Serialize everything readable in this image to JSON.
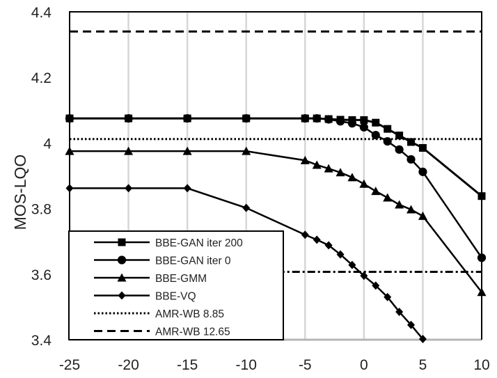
{
  "chart_data": {
    "type": "line",
    "title": "",
    "xlabel": "",
    "ylabel": "MOS-LQO",
    "xlim": [
      -25,
      10
    ],
    "ylim": [
      3.4,
      4.4
    ],
    "x_ticks": [
      "-25",
      "-20",
      "-15",
      "-10",
      "-5",
      "0",
      "5",
      "10"
    ],
    "y_ticks": [
      "3.4",
      "3.6",
      "3.8",
      "4",
      "4.2",
      "4.4"
    ],
    "x_tick_values": [
      -25,
      -20,
      -15,
      -10,
      -5,
      0,
      5,
      10
    ],
    "y_tick_values": [
      3.4,
      3.6,
      3.8,
      4.0,
      4.2,
      4.4
    ],
    "grid": "vertical",
    "legend_position": "bottom-left",
    "series": [
      {
        "name": "BBE-GAN iter 200",
        "marker": "square",
        "x": [
          -25,
          -20,
          -15,
          -10,
          -5,
          -4,
          -3,
          -2,
          -1,
          0,
          1,
          2,
          3,
          4,
          5,
          10
        ],
        "y": [
          4.075,
          4.075,
          4.075,
          4.075,
          4.075,
          4.075,
          4.073,
          4.071,
          4.07,
          4.07,
          4.062,
          4.043,
          4.023,
          4.003,
          3.985,
          3.838
        ]
      },
      {
        "name": "BBE-GAN iter 0",
        "marker": "circle",
        "x": [
          -25,
          -20,
          -15,
          -10,
          -5,
          -4,
          -3,
          -2,
          -1,
          0,
          1,
          2,
          3,
          4,
          5,
          10
        ],
        "y": [
          4.075,
          4.075,
          4.075,
          4.075,
          4.075,
          4.075,
          4.072,
          4.066,
          4.06,
          4.048,
          4.024,
          4.005,
          3.98,
          3.95,
          3.912,
          3.65
        ]
      },
      {
        "name": "BBE-GMM",
        "marker": "triangle",
        "x": [
          -25,
          -20,
          -15,
          -10,
          -5,
          -4,
          -3,
          -2,
          -1,
          0,
          1,
          2,
          3,
          4,
          5,
          10
        ],
        "y": [
          3.975,
          3.975,
          3.975,
          3.975,
          3.947,
          3.933,
          3.922,
          3.91,
          3.895,
          3.875,
          3.853,
          3.833,
          3.812,
          3.797,
          3.777,
          3.545
        ]
      },
      {
        "name": "BBE-VQ",
        "marker": "diamond",
        "x": [
          -25,
          -20,
          -15,
          -10,
          -5,
          -4,
          -3,
          -2,
          -1,
          0,
          1,
          2,
          3,
          4,
          5
        ],
        "y": [
          3.862,
          3.862,
          3.862,
          3.802,
          3.72,
          3.705,
          3.688,
          3.66,
          3.628,
          3.595,
          3.565,
          3.53,
          3.485,
          3.445,
          3.402
        ]
      },
      {
        "name": "AMR-WB 8.85",
        "marker": "none",
        "style": "dotted",
        "x": [
          -25,
          10
        ],
        "y": [
          4.012,
          4.012
        ]
      },
      {
        "name": "AMR-WB 12.65",
        "marker": "none",
        "style": "dashed",
        "x": [
          -25,
          10
        ],
        "y": [
          4.34,
          4.34
        ]
      },
      {
        "name": "",
        "marker": "none",
        "style": "dashdot",
        "x": [
          -10,
          10
        ],
        "y": [
          3.607,
          3.607
        ]
      }
    ]
  }
}
